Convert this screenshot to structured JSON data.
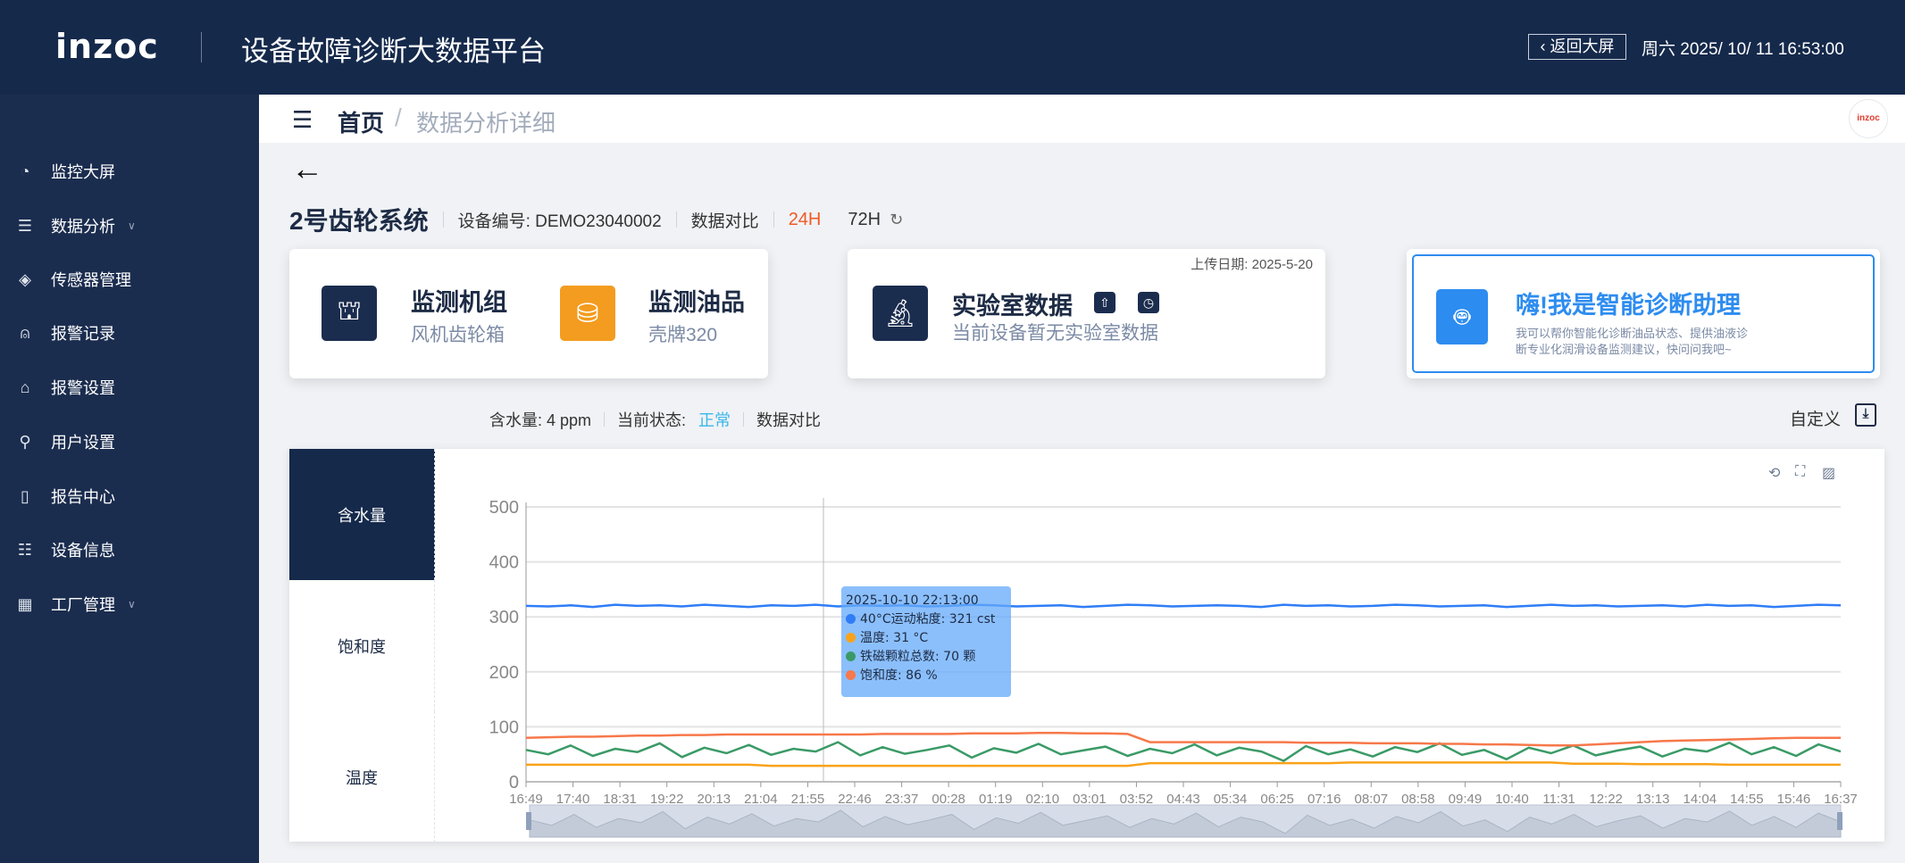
{
  "header": {
    "logo": "inzoc",
    "title": "设备故障诊断大数据平台",
    "return_label": "返回大屏",
    "datetime": "周六 2025/ 10/ 11 16:53:00"
  },
  "sidebar": {
    "items": [
      {
        "label": "监控大屏",
        "icon": "dashboard-icon",
        "glyph": "◔"
      },
      {
        "label": "数据分析",
        "icon": "analysis-icon",
        "glyph": "☰",
        "chevron": "∨"
      },
      {
        "label": "传感器管理",
        "icon": "layers-icon",
        "glyph": "◈"
      },
      {
        "label": "报警记录",
        "icon": "alarm-icon",
        "glyph": "⍝"
      },
      {
        "label": "报警设置",
        "icon": "alarm-settings-icon",
        "glyph": "⌂"
      },
      {
        "label": "用户设置",
        "icon": "user-icon",
        "glyph": "⚲"
      },
      {
        "label": "报告中心",
        "icon": "report-icon",
        "glyph": "▯"
      },
      {
        "label": "设备信息",
        "icon": "sliders-icon",
        "glyph": "☷"
      },
      {
        "label": "工厂管理",
        "icon": "grid-icon",
        "glyph": "▦",
        "chevron": "∨"
      }
    ]
  },
  "breadcrumb": {
    "home": "首页",
    "sep": "/",
    "current": "数据分析详细",
    "avatar": "inzoc"
  },
  "device": {
    "name": "2号齿轮系统",
    "code_label": "设备编号: DEMO23040002",
    "compare": "数据对比",
    "range_24": "24H",
    "range_72": "72H",
    "refresh_icon": "↻"
  },
  "cards": {
    "unit": {
      "title": "监测机组",
      "value": "风机齿轮箱"
    },
    "oil": {
      "title": "监测油品",
      "value": "壳牌320"
    },
    "lab": {
      "title": "实验室数据",
      "desc": "当前设备暂无实验室数据",
      "upload": "上传日期: 2025-5-20"
    },
    "assistant": {
      "title": "嗨!我是智能诊断助理",
      "desc1": "我可以帮你智能化诊断油品状态、提供油液诊",
      "desc2": "断专业化润滑设备监测建议，快问问我吧~"
    }
  },
  "colors": {
    "nav": "#15294b",
    "accent_orange": "#f05a24",
    "oil_box": "#f39c1f",
    "assistant": "#2d8cf0",
    "status_ok": "#3ab7e8"
  },
  "status": {
    "water": "含水量:  4 ppm",
    "state_label": "当前状态:",
    "state_value": "正常",
    "compare": "数据对比",
    "custom": "自定义",
    "download_icon": "⤓"
  },
  "tabs": [
    {
      "label": "含水量",
      "active": true
    },
    {
      "label": "饱和度"
    },
    {
      "label": "温度"
    }
  ],
  "tooltip": {
    "time": "2025-10-10 22:13:00",
    "rows": [
      "40°C运动粘度:  321 cst",
      "温度:  31 °C",
      "铁磁颗粒总数:  70 颗",
      "饱和度:  86 %"
    ]
  },
  "chart_data": {
    "type": "line",
    "ylim": [
      0,
      500
    ],
    "yticks": [
      0,
      100,
      200,
      300,
      400,
      500
    ],
    "xticks": [
      "16:49",
      "17:40",
      "18:31",
      "19:22",
      "20:13",
      "21:04",
      "21:55",
      "22:46",
      "23:37",
      "00:28",
      "01:19",
      "02:10",
      "03:01",
      "03:52",
      "04:43",
      "05:34",
      "06:25",
      "07:16",
      "08:07",
      "08:58",
      "09:49",
      "10:40",
      "11:31",
      "12:22",
      "13:13",
      "14:04",
      "14:55",
      "15:46",
      "16:37"
    ],
    "grid": true,
    "series": [
      {
        "name": "40°C运动粘度",
        "unit": "cst",
        "color": "#2f7df6",
        "values": [
          320,
          319,
          321,
          318,
          322,
          320,
          321,
          319,
          322,
          320,
          318,
          321,
          320,
          322,
          319,
          321,
          320,
          321,
          319,
          320,
          322,
          321,
          319,
          320,
          321,
          318,
          320,
          322,
          321,
          319,
          320,
          321,
          320,
          318,
          322,
          320,
          321,
          319,
          320,
          322,
          321,
          319,
          320,
          321,
          318,
          320,
          322,
          320,
          321,
          319,
          320,
          321,
          319,
          322,
          320,
          321,
          318,
          320,
          322,
          321
        ]
      },
      {
        "name": "温度",
        "unit": "°C",
        "color": "#f9a21a",
        "values": [
          31,
          31,
          31,
          31,
          31,
          31,
          31,
          31,
          31,
          31,
          31,
          29,
          29,
          29,
          29,
          29,
          29,
          29,
          29,
          29,
          29,
          29,
          29,
          29,
          29,
          29,
          29,
          29,
          34,
          34,
          34,
          34,
          34,
          34,
          34,
          34,
          34,
          35,
          35,
          35,
          35,
          35,
          35,
          35,
          35,
          35,
          35,
          33,
          33,
          33,
          32,
          32,
          32,
          32,
          31,
          31,
          31,
          31,
          31,
          31
        ]
      },
      {
        "name": "铁磁颗粒总数",
        "unit": "颗",
        "color": "#3a9a66",
        "values": [
          58,
          50,
          66,
          47,
          60,
          54,
          70,
          45,
          62,
          52,
          67,
          49,
          60,
          55,
          72,
          48,
          63,
          51,
          58,
          66,
          44,
          61,
          53,
          69,
          50,
          57,
          64,
          47,
          60,
          52,
          68,
          48,
          62,
          55,
          38,
          65,
          50,
          59,
          46,
          63,
          54,
          70,
          49,
          58,
          41,
          62,
          52,
          66,
          48,
          57,
          64,
          46,
          60,
          55,
          71,
          50,
          63,
          47,
          68,
          55
        ]
      },
      {
        "name": "饱和度",
        "unit": "%",
        "color": "#f7784a",
        "values": [
          80,
          81,
          82,
          82,
          83,
          84,
          84,
          85,
          85,
          86,
          86,
          86,
          86,
          86,
          86,
          86,
          87,
          87,
          87,
          87,
          88,
          88,
          88,
          89,
          89,
          88,
          88,
          87,
          72,
          72,
          72,
          72,
          72,
          72,
          72,
          71,
          71,
          71,
          70,
          70,
          70,
          69,
          69,
          68,
          68,
          67,
          66,
          66,
          68,
          70,
          72,
          74,
          75,
          76,
          77,
          78,
          79,
          80,
          80,
          80
        ]
      }
    ]
  }
}
